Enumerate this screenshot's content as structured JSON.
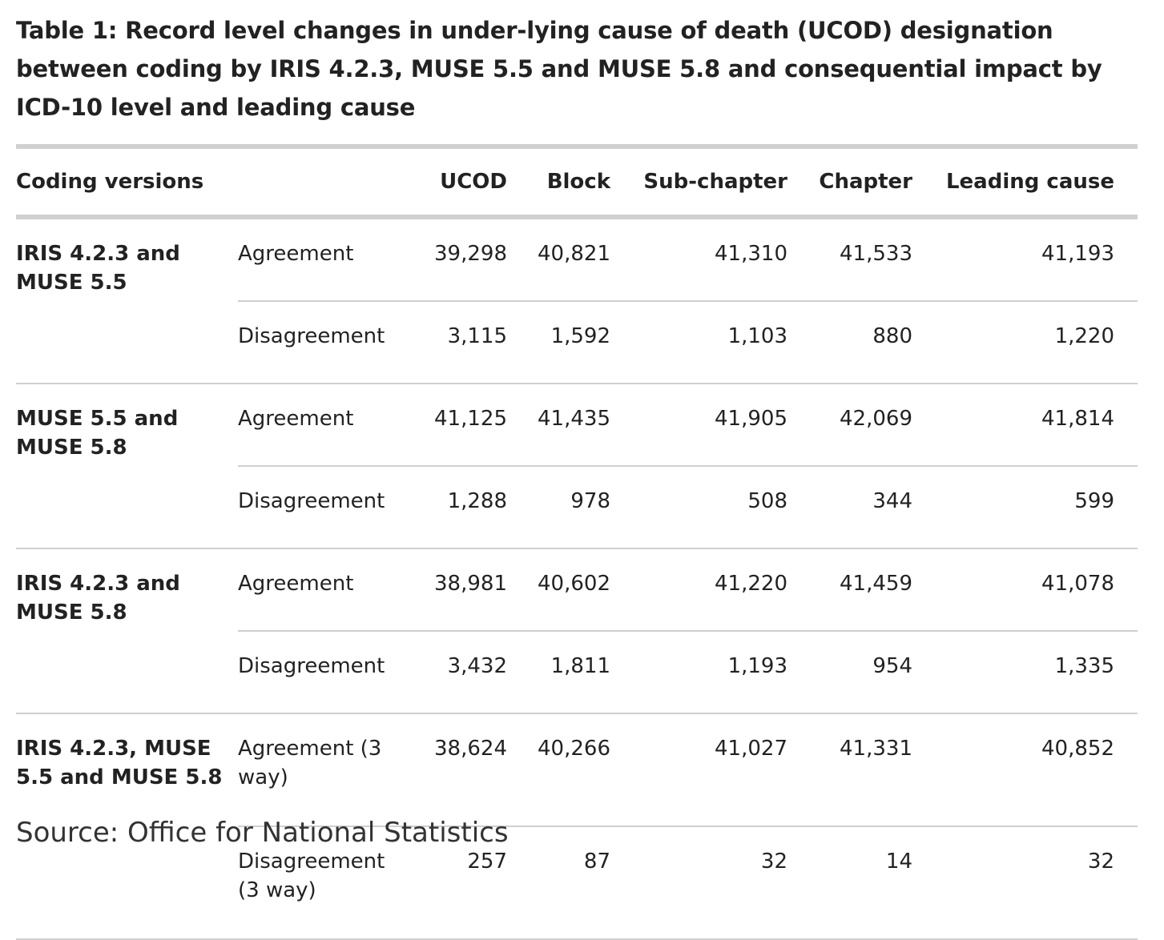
{
  "title": "Table 1: Record level changes in under-lying cause of death (UCOD) designation between coding by IRIS 4.2.3, MUSE 5.5 and MUSE 5.8 and consequential impact by ICD-10 level and leading cause",
  "table": {
    "headers": {
      "coding_versions": "Coding versions",
      "ucod": "UCOD",
      "block": "Block",
      "sub_chapter": "Sub-chapter",
      "chapter": "Chapter",
      "leading_cause": "Leading cause"
    },
    "groups": [
      {
        "name": "IRIS 4.2.3 and MUSE 5.5",
        "rows": [
          {
            "type": "Agreement",
            "ucod": "39,298",
            "block": "40,821",
            "sub_chapter": "41,310",
            "chapter": "41,533",
            "leading_cause": "41,193"
          },
          {
            "type": "Disagreement",
            "ucod": "3,115",
            "block": "1,592",
            "sub_chapter": "1,103",
            "chapter": "880",
            "leading_cause": "1,220"
          }
        ]
      },
      {
        "name": "MUSE 5.5 and MUSE 5.8",
        "rows": [
          {
            "type": "Agreement",
            "ucod": "41,125",
            "block": "41,435",
            "sub_chapter": "41,905",
            "chapter": "42,069",
            "leading_cause": "41,814"
          },
          {
            "type": "Disagreement",
            "ucod": "1,288",
            "block": "978",
            "sub_chapter": "508",
            "chapter": "344",
            "leading_cause": "599"
          }
        ]
      },
      {
        "name": "IRIS 4.2.3 and MUSE 5.8",
        "rows": [
          {
            "type": "Agreement",
            "ucod": "38,981",
            "block": "40,602",
            "sub_chapter": "41,220",
            "chapter": "41,459",
            "leading_cause": "41,078"
          },
          {
            "type": "Disagreement",
            "ucod": "3,432",
            "block": "1,811",
            "sub_chapter": "1,193",
            "chapter": "954",
            "leading_cause": "1,335"
          }
        ]
      },
      {
        "name": "IRIS 4.2.3, MUSE 5.5 and MUSE 5.8",
        "rows": [
          {
            "type": "Agreement (3 way)",
            "ucod": "38,624",
            "block": "40,266",
            "sub_chapter": "41,027",
            "chapter": "41,331",
            "leading_cause": "40,852"
          },
          {
            "type": "Disagreement (3 way)",
            "ucod": "257",
            "block": "87",
            "sub_chapter": "32",
            "chapter": "14",
            "leading_cause": "32"
          }
        ]
      }
    ]
  },
  "source": "Source: Office for National Statistics"
}
